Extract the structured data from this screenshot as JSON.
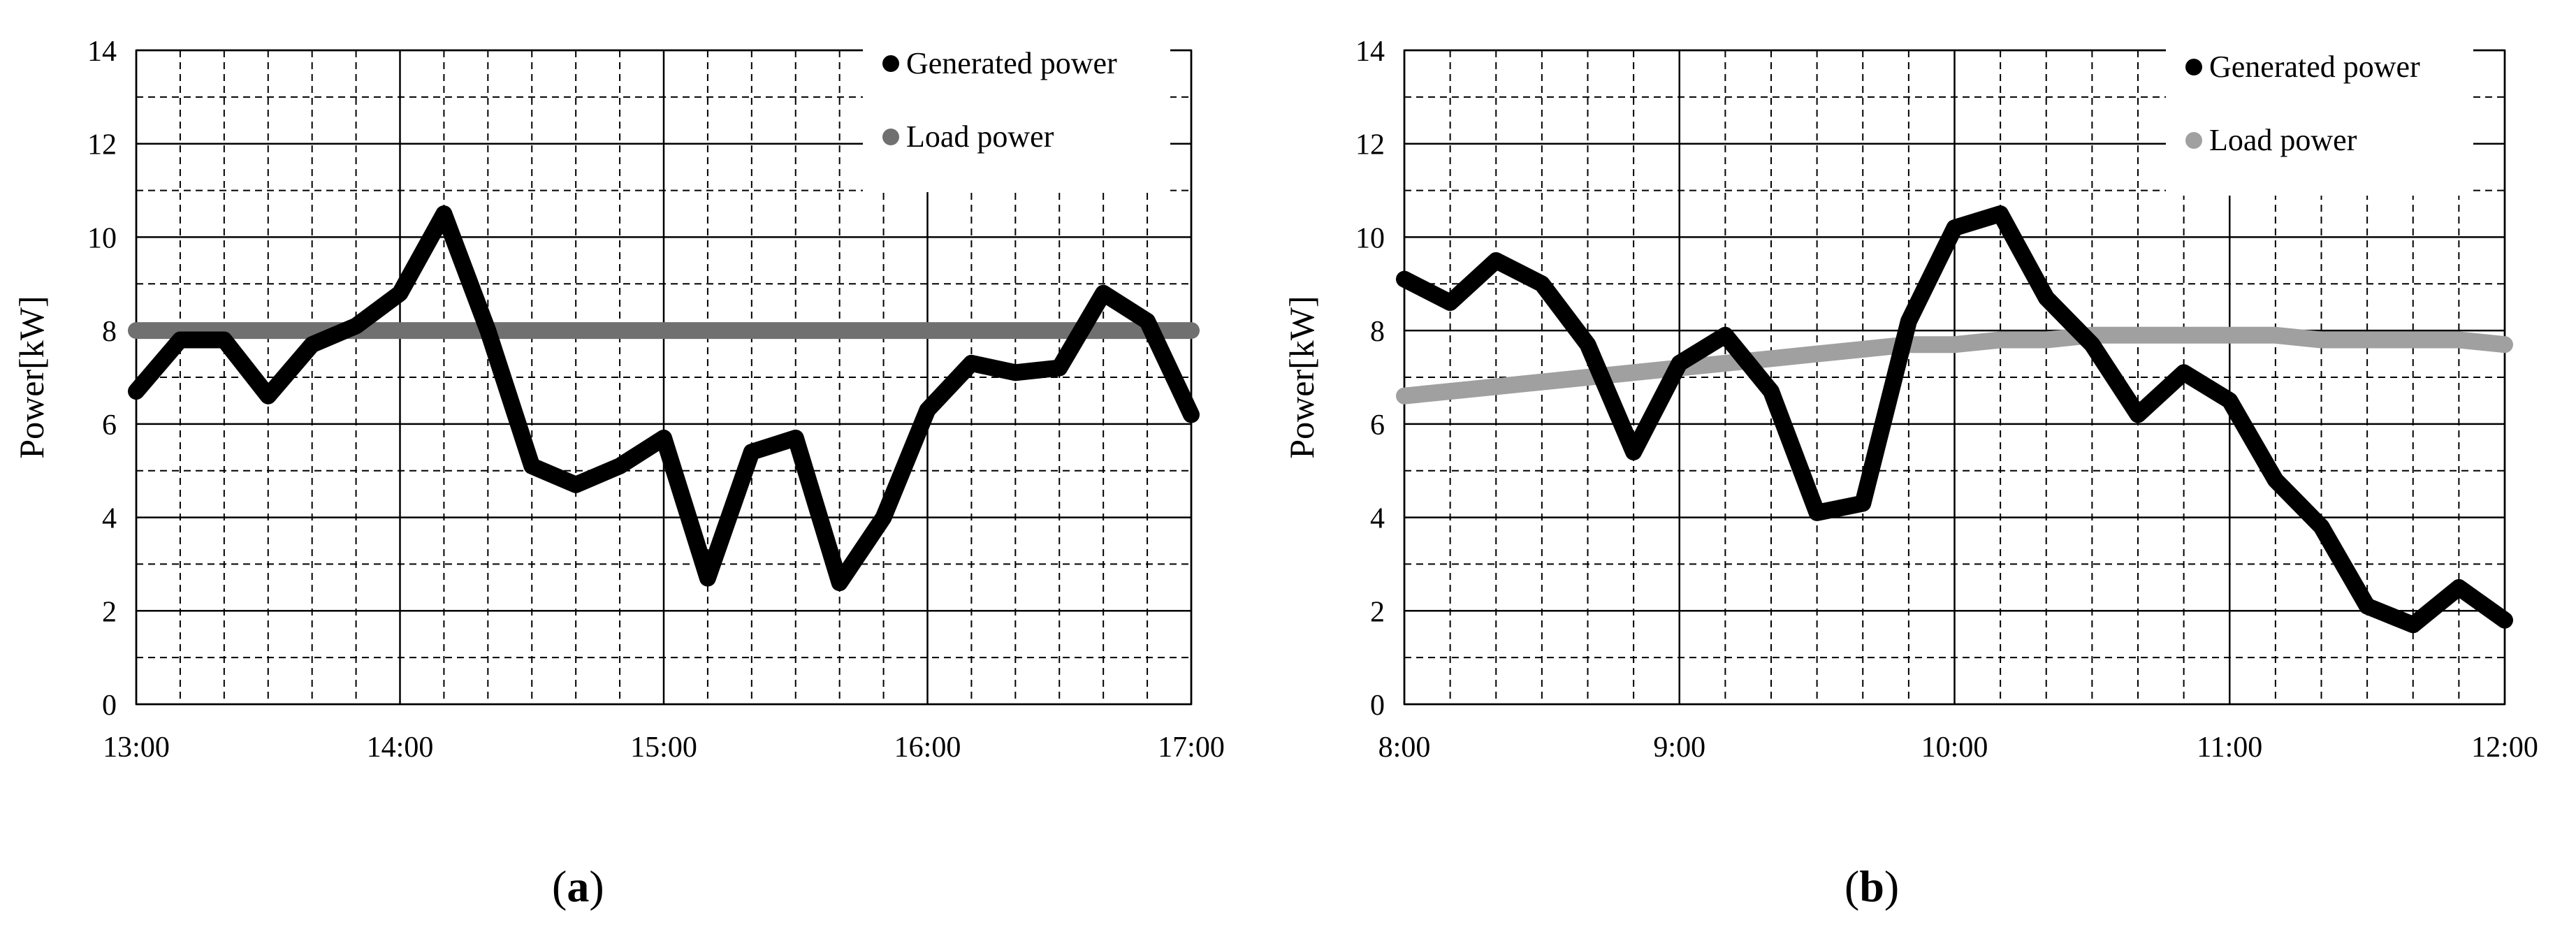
{
  "captions": [
    "a",
    "b"
  ],
  "chart_data": [
    {
      "type": "line",
      "panel": "a",
      "ylabel": "Power[kW]",
      "xlabel": "",
      "ylim": [
        0,
        14
      ],
      "yticks": [
        0,
        2,
        4,
        6,
        8,
        10,
        12,
        14
      ],
      "xticks": [
        "13:00",
        "14:00",
        "15:00",
        "16:00",
        "17:00"
      ],
      "xlim_hours": [
        13,
        17
      ],
      "grid": "major solid, minor dashed",
      "legend_position": "top-right",
      "x": [
        "13:00",
        "13:10",
        "13:20",
        "13:30",
        "13:40",
        "13:50",
        "14:00",
        "14:10",
        "14:20",
        "14:30",
        "14:40",
        "14:50",
        "15:00",
        "15:10",
        "15:20",
        "15:30",
        "15:40",
        "15:50",
        "16:00",
        "16:10",
        "16:20",
        "16:30",
        "16:40",
        "16:50",
        "17:00"
      ],
      "series": [
        {
          "name": "Generated power",
          "color": "#000000",
          "values": [
            6.7,
            7.8,
            7.8,
            6.6,
            7.7,
            8.1,
            8.8,
            10.5,
            8.0,
            5.1,
            4.7,
            5.1,
            5.7,
            2.7,
            5.4,
            5.7,
            2.6,
            4.0,
            6.3,
            7.3,
            7.1,
            7.2,
            8.8,
            8.2,
            6.2
          ]
        },
        {
          "name": "Load power",
          "color": "#707070",
          "values": [
            8.0,
            8.0,
            8.0,
            8.0,
            8.0,
            8.0,
            8.0,
            8.0,
            8.0,
            8.0,
            8.0,
            8.0,
            8.0,
            8.0,
            8.0,
            8.0,
            8.0,
            8.0,
            8.0,
            8.0,
            8.0,
            8.0,
            8.0,
            8.0,
            8.0
          ]
        }
      ]
    },
    {
      "type": "line",
      "panel": "b",
      "ylabel": "Power[kW]",
      "xlabel": "",
      "ylim": [
        0,
        14
      ],
      "yticks": [
        0,
        2,
        4,
        6,
        8,
        10,
        12,
        14
      ],
      "xticks": [
        "8:00",
        "9:00",
        "10:00",
        "11:00",
        "12:00"
      ],
      "xlim_hours": [
        8,
        12
      ],
      "grid": "major solid, minor dashed",
      "legend_position": "top-right",
      "x": [
        "8:00",
        "8:10",
        "8:20",
        "8:30",
        "8:40",
        "8:50",
        "9:00",
        "9:10",
        "9:20",
        "9:30",
        "9:40",
        "9:50",
        "10:00",
        "10:10",
        "10:20",
        "10:30",
        "10:40",
        "10:50",
        "11:00",
        "11:10",
        "11:20",
        "11:30",
        "11:40",
        "11:50",
        "12:00"
      ],
      "series": [
        {
          "name": "Generated power",
          "color": "#000000",
          "values": [
            9.1,
            8.6,
            9.5,
            9.0,
            7.7,
            5.4,
            7.3,
            7.9,
            6.7,
            4.1,
            4.3,
            8.2,
            10.2,
            10.5,
            8.7,
            7.7,
            6.2,
            7.1,
            6.5,
            4.8,
            3.8,
            2.1,
            1.7,
            2.5,
            1.8
          ]
        },
        {
          "name": "Load power",
          "color": "#a0a0a0",
          "values": [
            6.6,
            6.7,
            6.8,
            6.9,
            7.0,
            7.1,
            7.2,
            7.3,
            7.4,
            7.5,
            7.6,
            7.7,
            7.7,
            7.8,
            7.8,
            7.9,
            7.9,
            7.9,
            7.9,
            7.9,
            7.8,
            7.8,
            7.8,
            7.8,
            7.7
          ]
        }
      ]
    }
  ]
}
